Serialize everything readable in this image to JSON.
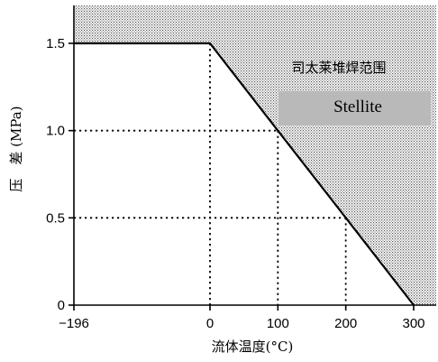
{
  "chart_data": {
    "type": "line",
    "title": "",
    "xlabel": "流体温度(°C)",
    "ylabel": "压　差 (MPa)",
    "x_ticks": [
      "−196",
      "0",
      "100",
      "200",
      "300"
    ],
    "y_ticks": [
      "0",
      "0.5",
      "1.0",
      "1.5"
    ],
    "xlim": [
      -196,
      300
    ],
    "ylim": [
      0,
      1.5
    ],
    "series": [
      {
        "name": "",
        "x": [
          -196,
          0,
          100,
          200,
          300
        ],
        "y": [
          1.5,
          1.5,
          1.0,
          0.5,
          0
        ]
      }
    ],
    "reference_points": [
      {
        "x": 0,
        "y": 1.5
      },
      {
        "x": 100,
        "y": 1.0
      },
      {
        "x": 200,
        "y": 0.5
      }
    ],
    "shaded_region": {
      "label": "司太莱堆焊范围",
      "box_label": "Stellite",
      "box_color": "#b9b9b9"
    },
    "grid": false
  }
}
